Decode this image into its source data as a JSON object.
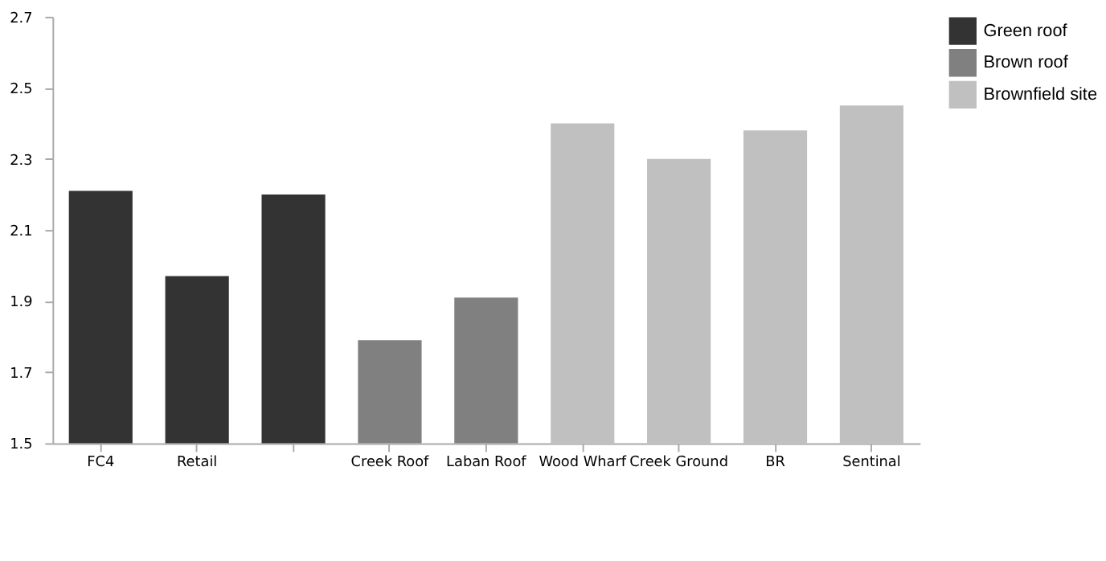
{
  "chart_data": {
    "type": "bar",
    "categories": [
      "FC4",
      "Retail",
      null,
      "Creek Roof",
      "Laban Roof",
      "Wood Wharf",
      "Creek Ground",
      "BR",
      "Sentinal"
    ],
    "series": [
      {
        "name": "Green roof",
        "color": "#333333",
        "values": [
          2.21,
          1.97,
          2.2,
          null,
          null,
          null,
          null,
          null,
          null
        ]
      },
      {
        "name": "Brown roof",
        "color": "#808080",
        "values": [
          null,
          null,
          null,
          1.79,
          1.91,
          null,
          null,
          null,
          null
        ]
      },
      {
        "name": "Brownfield site",
        "color": "#c0c0c0",
        "values": [
          null,
          null,
          null,
          null,
          null,
          2.4,
          2.3,
          2.38,
          2.45
        ]
      }
    ],
    "ylim": [
      1.5,
      2.7
    ],
    "yticks": [
      1.5,
      1.7,
      1.9,
      2.1,
      2.3,
      2.5,
      2.7
    ],
    "grid": false,
    "legend": "right"
  }
}
